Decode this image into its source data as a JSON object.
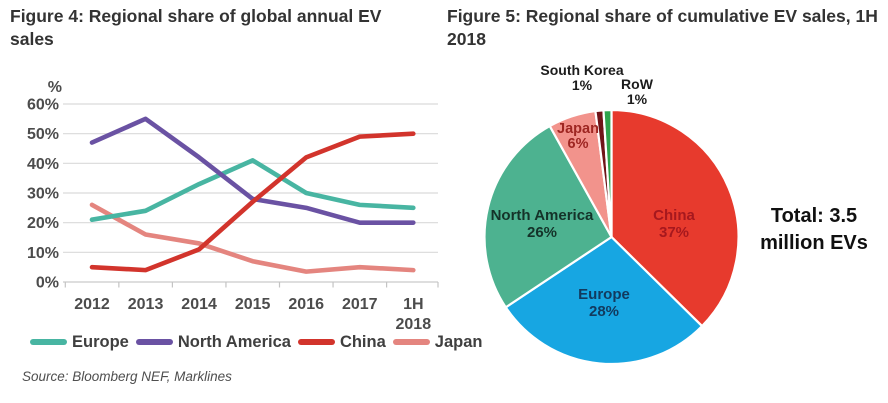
{
  "fig4": {
    "title": "Figure 4: Regional share of global annual EV sales",
    "source": "Source: Bloomberg NEF, Marklines"
  },
  "fig5": {
    "title": "Figure 5: Regional share of cumulative EV sales, 1H 2018",
    "total": "Total: 3.5 million EVs"
  },
  "chart_data": [
    {
      "figure": "Figure 4",
      "type": "line",
      "title": "Regional share of global annual EV sales",
      "x": [
        "2012",
        "2013",
        "2014",
        "2015",
        "2016",
        "2017",
        "1H 2018"
      ],
      "ylabel": "%",
      "ylim": [
        0,
        60
      ],
      "yticks": [
        0,
        10,
        20,
        30,
        40,
        50,
        60
      ],
      "grid": true,
      "legend_position": "bottom",
      "series": [
        {
          "name": "Japan",
          "color": "#e4857f",
          "values": [
            26,
            16,
            13,
            7,
            3.5,
            5,
            4
          ]
        },
        {
          "name": "Europe",
          "color": "#48b5a2",
          "values": [
            21,
            24,
            33,
            41,
            30,
            26,
            25
          ]
        },
        {
          "name": "North America",
          "color": "#6a52a3",
          "values": [
            47,
            55,
            42,
            28,
            25,
            20,
            20
          ]
        },
        {
          "name": "China",
          "color": "#d2342c",
          "values": [
            5,
            4,
            11,
            27,
            42,
            49,
            50
          ]
        }
      ],
      "legend_order": [
        "Europe",
        "North America",
        "China",
        "Japan"
      ]
    },
    {
      "figure": "Figure 5",
      "type": "pie",
      "title": "Regional share of cumulative EV sales, 1H 2018",
      "total_label": "Total: 3.5 million EVs",
      "direction": "clockwise",
      "start_angle": "12 o'clock",
      "slices": [
        {
          "name": "China",
          "pct": 37,
          "label": "37%",
          "color": "#e73a2d"
        },
        {
          "name": "Europe",
          "pct": 28,
          "label": "28%",
          "color": "#17a6e2"
        },
        {
          "name": "North America",
          "pct": 26,
          "label": "26%",
          "color": "#4db290"
        },
        {
          "name": "Japan",
          "pct": 6,
          "label": "6%",
          "color": "#f2938c"
        },
        {
          "name": "South Korea",
          "pct": 1,
          "label": "1%",
          "color": "#701418"
        },
        {
          "name": "RoW",
          "pct": 1,
          "label": "1%",
          "color": "#2fa34c"
        }
      ]
    }
  ]
}
